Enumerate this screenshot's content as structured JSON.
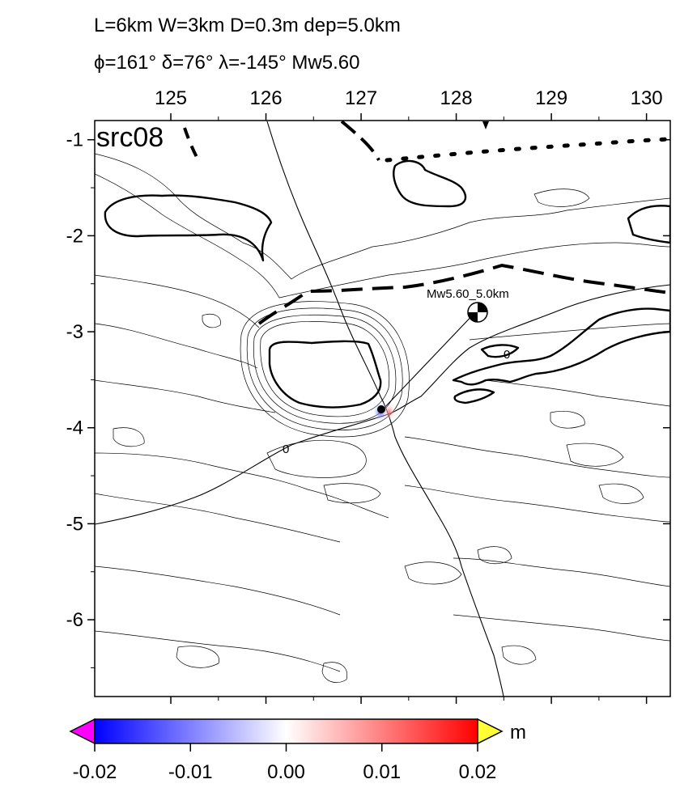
{
  "header": {
    "line1": "L=6km W=3km D=0.3m dep=5.0km",
    "line2": "ϕ=161° δ=76° λ=-145° Mw5.60"
  },
  "map": {
    "source_label": "src08",
    "lon_range": [
      124.2,
      130.25
    ],
    "lat_range": [
      -6.8,
      -0.8
    ],
    "x_ticks": [
      125,
      126,
      127,
      128,
      129,
      130
    ],
    "x_tick_labels": [
      "125",
      "126",
      "127",
      "128",
      "129",
      "130"
    ],
    "y_ticks": [
      -1,
      -2,
      -3,
      -4,
      -5,
      -6
    ],
    "y_tick_labels": [
      "-1",
      "-2",
      "-3",
      "-4",
      "-5",
      "-6"
    ],
    "event": {
      "label": "Mw5.60_5.0km",
      "lon": 128.2,
      "lat": -2.8
    },
    "source_point": {
      "lon": 127.15,
      "lat": -3.82
    },
    "contour_labels": [
      "0",
      "0"
    ]
  },
  "colorbar": {
    "unit": "m",
    "min": -0.02,
    "max": 0.02,
    "tick_labels": [
      "-0.02",
      "-0.01",
      "0.00",
      "0.01",
      "0.02"
    ],
    "colors": {
      "low": "#0000ff",
      "mid": "#ffffff",
      "high": "#ff0000",
      "under": "#ff00ff",
      "over": "#ffff33"
    }
  }
}
